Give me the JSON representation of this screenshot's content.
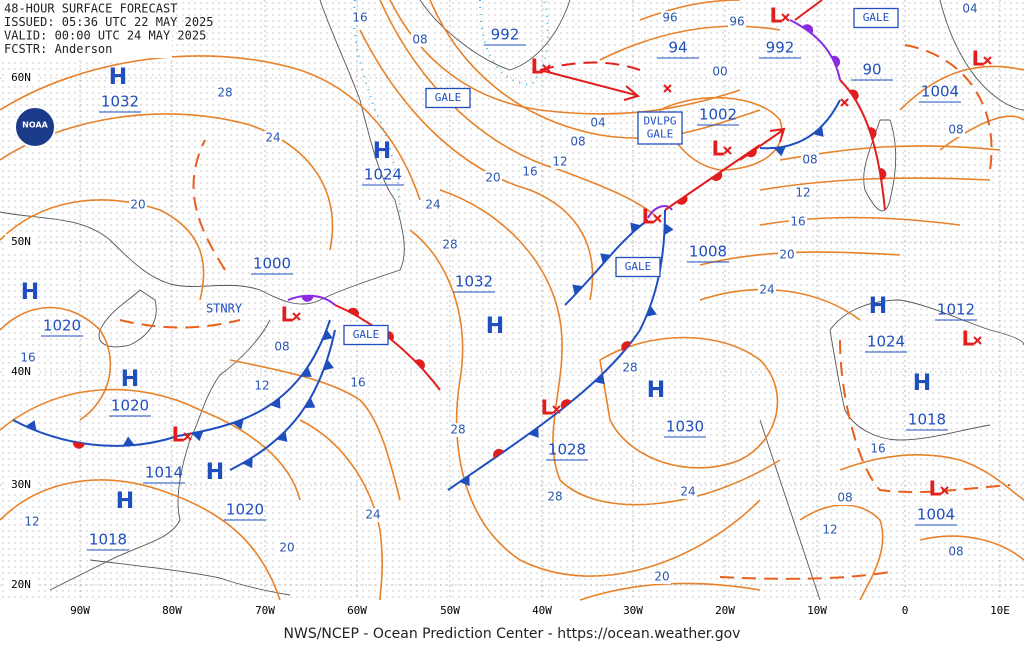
{
  "header": {
    "lines": [
      "48-HOUR SURFACE FORECAST",
      "ISSUED: 05:36 UTC 22 MAY 2025",
      "VALID:  00:00 UTC 24 MAY 2025",
      "FCSTR:  Anderson"
    ]
  },
  "logo_text": "NOAA",
  "latitude_labels": [
    "60N",
    "50N",
    "40N",
    "30N",
    "20N"
  ],
  "longitude_labels": [
    "90W",
    "80W",
    "70W",
    "60W",
    "50W",
    "40W",
    "30W",
    "20W",
    "10W",
    "0",
    "10E"
  ],
  "highs": [
    {
      "symbol": "H",
      "pressure": 1032
    },
    {
      "symbol": "H",
      "pressure": 1024
    },
    {
      "symbol": "H",
      "pressure": 1020
    },
    {
      "symbol": "H",
      "pressure": 1020
    },
    {
      "symbol": "H",
      "pressure": 1018
    },
    {
      "symbol": "H",
      "pressure": 1020
    },
    {
      "symbol": "H",
      "pressure": 1032
    },
    {
      "symbol": "H",
      "pressure": 1030
    },
    {
      "symbol": "H",
      "pressure": 1024
    },
    {
      "symbol": "H",
      "pressure": 1018
    }
  ],
  "lows": [
    {
      "symbol": "L",
      "pressure": 992
    },
    {
      "symbol": "L",
      "pressure": 992
    },
    {
      "pressure": 94
    },
    {
      "pressure": 90
    },
    {
      "symbol": "L",
      "pressure": 1002
    },
    {
      "symbol": "L",
      "pressure": 1008
    },
    {
      "symbol": "L",
      "pressure": 1000
    },
    {
      "symbol": "L",
      "pressure": 1014
    },
    {
      "symbol": "L",
      "pressure": 1028
    },
    {
      "symbol": "L",
      "pressure": 1004
    },
    {
      "symbol": "L",
      "pressure": 1012
    },
    {
      "symbol": "L",
      "pressure": 1004
    }
  ],
  "isobar_labels": [
    "16",
    "08",
    "28",
    "24",
    "20",
    "16",
    "12",
    "08",
    "16",
    "24",
    "28",
    "20",
    "16",
    "12",
    "08",
    "04",
    "00",
    "96",
    "96",
    "04",
    "08",
    "08",
    "12",
    "16",
    "20",
    "24",
    "28",
    "28",
    "28",
    "24",
    "24",
    "20",
    "20",
    "12",
    "16",
    "08",
    "12",
    "08"
  ],
  "warnings": [
    {
      "lines": [
        "GALE"
      ]
    },
    {
      "lines": [
        "GALE"
      ]
    },
    {
      "lines": [
        "DVLPG",
        "GALE"
      ]
    },
    {
      "lines": [
        "GALE"
      ]
    },
    {
      "lines": [
        "GALE"
      ]
    }
  ],
  "front_labels": [
    "STNRY"
  ],
  "footer": "NWS/NCEP - Ocean Prediction Center - https://ocean.weather.gov"
}
